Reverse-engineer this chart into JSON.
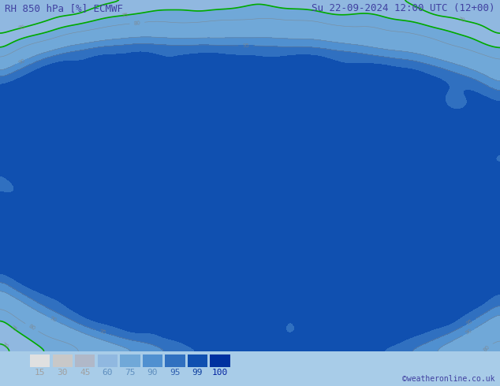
{
  "title_left": "RH 850 hPa [%] ECMWF",
  "title_right": "Su 22-09-2024 12:00 UTC (12+00)",
  "credit": "©weatheronline.co.uk",
  "legend_values": [
    15,
    30,
    45,
    60,
    75,
    90,
    95,
    99,
    100
  ],
  "legend_colors": [
    "#e0e0e0",
    "#c8c8c8",
    "#b0b8c8",
    "#90b8e0",
    "#70a8d8",
    "#5090d0",
    "#3070c0",
    "#1050b0",
    "#0030a0"
  ],
  "bg_color": "#a8cce8",
  "map_bg": "#b8d8f0",
  "border_color": "#808080",
  "bottom_bar_height": 0.09,
  "figsize": [
    6.34,
    4.9
  ],
  "dpi": 100,
  "title_fontsize": 9,
  "legend_fontsize": 8,
  "credit_fontsize": 7,
  "title_color": "#4040a0",
  "legend_label_colors": [
    "#a0a0a0",
    "#a0a0a0",
    "#a0a0a0",
    "#6090c0",
    "#6090c0",
    "#6090c0",
    "#3060b0",
    "#1040a0",
    "#0020a0"
  ],
  "contour_color": "#808080",
  "green_line_color": "#00aa00"
}
